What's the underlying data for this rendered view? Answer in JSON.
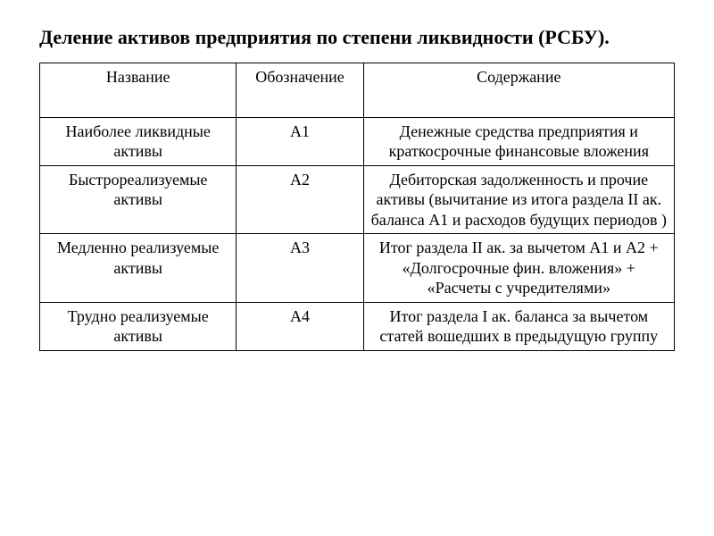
{
  "title": "Деление активов предприятия по степени ликвидности (РСБУ).",
  "table": {
    "type": "table",
    "border_color": "#000000",
    "background_color": "#ffffff",
    "text_color": "#000000",
    "font_family": "Times New Roman",
    "title_fontsize": 22,
    "cell_fontsize": 18,
    "columns": [
      {
        "label": "Название",
        "width_pct": 31,
        "align": "center"
      },
      {
        "label": "Обозначение",
        "width_pct": 20,
        "align": "center"
      },
      {
        "label": "Содержание",
        "width_pct": 49,
        "align": "center"
      }
    ],
    "rows": [
      {
        "name": "Наиболее ликвидные активы",
        "code": "А1",
        "desc": "Денежные средства предприятия и краткосрочные финансовые вложения"
      },
      {
        "name": "Быстрореализуемые активы",
        "code": "А2",
        "desc": "Дебиторская задолженность и прочие активы (вычитание из итога раздела II ак. баланса А1 и расходов будущих периодов )"
      },
      {
        "name": "Медленно реализуемые активы",
        "code": "А3",
        "desc": "Итог раздела II ак. за вычетом А1 и А2 + «Долгосрочные фин. вложения» + «Расчеты с учредителями»"
      },
      {
        "name": "Трудно реализуемые активы",
        "code": "А4",
        "desc": "Итог раздела I ак. баланса за вычетом статей вошедших в предыдущую группу"
      }
    ]
  }
}
